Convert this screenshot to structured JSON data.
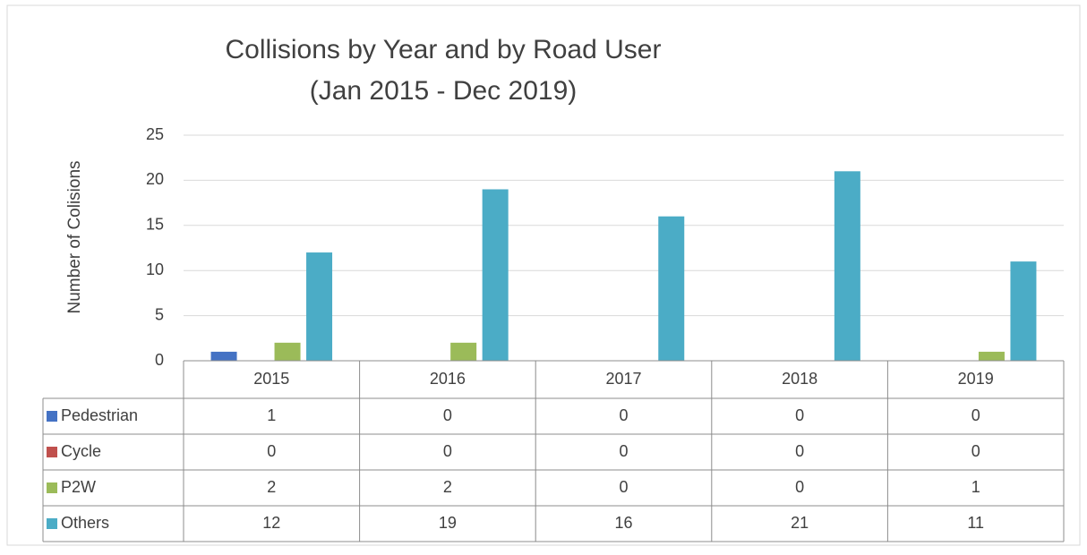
{
  "chart_data": {
    "type": "bar",
    "title": "Collisions by Year and by Road User",
    "subtitle": "(Jan 2015 - Dec 2019)",
    "y_label": "Number of Colisions",
    "categories": [
      "2015",
      "2016",
      "2017",
      "2018",
      "2019"
    ],
    "series": [
      {
        "name": "Pedestrian",
        "color": "#4472c4",
        "values": [
          1,
          0,
          0,
          0,
          0
        ]
      },
      {
        "name": "Cycle",
        "color": "#c0504d",
        "values": [
          0,
          0,
          0,
          0,
          0
        ]
      },
      {
        "name": "P2W",
        "color": "#9bbb59",
        "values": [
          2,
          2,
          0,
          0,
          1
        ]
      },
      {
        "name": "Others",
        "color": "#4bacc6",
        "values": [
          12,
          19,
          16,
          21,
          11
        ]
      }
    ],
    "ylim": [
      0,
      25
    ],
    "yticks": [
      0,
      5,
      10,
      15,
      20,
      25
    ],
    "grid": true
  }
}
